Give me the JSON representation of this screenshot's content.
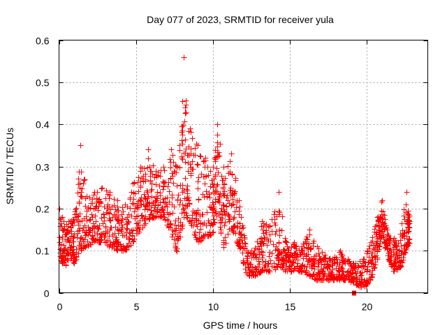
{
  "chart_data": {
    "type": "scatter",
    "title": "Day 077 of 2023, SRMTID for receiver yula",
    "xlabel": "GPS time / hours",
    "ylabel": "SRMTID / TECUs",
    "xlim": [
      0,
      24
    ],
    "ylim": [
      0,
      0.6
    ],
    "xticks": [
      0,
      5,
      10,
      15,
      20
    ],
    "xtick_labels": [
      "0",
      "5",
      "10",
      "15",
      "20"
    ],
    "yticks": [
      0,
      0.1,
      0.2,
      0.3,
      0.4,
      0.5,
      0.6
    ],
    "ytick_labels": [
      "0",
      "0.1",
      "0.2",
      "0.3",
      "0.4",
      "0.5",
      "0.6"
    ],
    "grid": true,
    "marker": "plus",
    "color": "#ff0000",
    "special_point": {
      "x": 19.2,
      "y": 0.0,
      "marker": "square"
    },
    "envelope": [
      {
        "x": 0.0,
        "lo": 0.09,
        "hi": 0.2
      },
      {
        "x": 0.3,
        "lo": 0.06,
        "hi": 0.17
      },
      {
        "x": 0.7,
        "lo": 0.08,
        "hi": 0.17
      },
      {
        "x": 1.0,
        "lo": 0.07,
        "hi": 0.18
      },
      {
        "x": 1.4,
        "lo": 0.1,
        "hi": 0.35
      },
      {
        "x": 1.8,
        "lo": 0.11,
        "hi": 0.23
      },
      {
        "x": 2.3,
        "lo": 0.12,
        "hi": 0.24
      },
      {
        "x": 2.8,
        "lo": 0.12,
        "hi": 0.25
      },
      {
        "x": 3.3,
        "lo": 0.11,
        "hi": 0.24
      },
      {
        "x": 3.8,
        "lo": 0.1,
        "hi": 0.22
      },
      {
        "x": 4.3,
        "lo": 0.1,
        "hi": 0.21
      },
      {
        "x": 4.8,
        "lo": 0.12,
        "hi": 0.26
      },
      {
        "x": 5.3,
        "lo": 0.15,
        "hi": 0.3
      },
      {
        "x": 5.8,
        "lo": 0.17,
        "hi": 0.34
      },
      {
        "x": 6.3,
        "lo": 0.18,
        "hi": 0.29
      },
      {
        "x": 6.8,
        "lo": 0.18,
        "hi": 0.3
      },
      {
        "x": 7.3,
        "lo": 0.14,
        "hi": 0.34
      },
      {
        "x": 7.7,
        "lo": 0.09,
        "hi": 0.3
      },
      {
        "x": 8.1,
        "lo": 0.18,
        "hi": 0.56
      },
      {
        "x": 8.5,
        "lo": 0.17,
        "hi": 0.39
      },
      {
        "x": 9.0,
        "lo": 0.12,
        "hi": 0.35
      },
      {
        "x": 9.5,
        "lo": 0.13,
        "hi": 0.32
      },
      {
        "x": 10.0,
        "lo": 0.14,
        "hi": 0.3
      },
      {
        "x": 10.3,
        "lo": 0.19,
        "hi": 0.4
      },
      {
        "x": 10.7,
        "lo": 0.1,
        "hi": 0.3
      },
      {
        "x": 11.2,
        "lo": 0.15,
        "hi": 0.33
      },
      {
        "x": 11.7,
        "lo": 0.11,
        "hi": 0.22
      },
      {
        "x": 12.2,
        "lo": 0.04,
        "hi": 0.1
      },
      {
        "x": 12.7,
        "lo": 0.04,
        "hi": 0.1
      },
      {
        "x": 13.2,
        "lo": 0.05,
        "hi": 0.17
      },
      {
        "x": 13.7,
        "lo": 0.05,
        "hi": 0.16
      },
      {
        "x": 14.3,
        "lo": 0.06,
        "hi": 0.24
      },
      {
        "x": 14.8,
        "lo": 0.05,
        "hi": 0.12
      },
      {
        "x": 15.3,
        "lo": 0.05,
        "hi": 0.12
      },
      {
        "x": 15.8,
        "lo": 0.05,
        "hi": 0.11
      },
      {
        "x": 16.3,
        "lo": 0.04,
        "hi": 0.15
      },
      {
        "x": 16.8,
        "lo": 0.03,
        "hi": 0.11
      },
      {
        "x": 17.3,
        "lo": 0.03,
        "hi": 0.09
      },
      {
        "x": 17.8,
        "lo": 0.03,
        "hi": 0.08
      },
      {
        "x": 18.3,
        "lo": 0.03,
        "hi": 0.1
      },
      {
        "x": 18.8,
        "lo": 0.03,
        "hi": 0.08
      },
      {
        "x": 19.3,
        "lo": 0.02,
        "hi": 0.07
      },
      {
        "x": 19.8,
        "lo": 0.01,
        "hi": 0.08
      },
      {
        "x": 20.3,
        "lo": 0.03,
        "hi": 0.12
      },
      {
        "x": 20.7,
        "lo": 0.08,
        "hi": 0.18
      },
      {
        "x": 21.0,
        "lo": 0.14,
        "hi": 0.22
      },
      {
        "x": 21.4,
        "lo": 0.08,
        "hi": 0.14
      },
      {
        "x": 21.8,
        "lo": 0.05,
        "hi": 0.13
      },
      {
        "x": 22.2,
        "lo": 0.06,
        "hi": 0.14
      },
      {
        "x": 22.6,
        "lo": 0.1,
        "hi": 0.24
      },
      {
        "x": 22.8,
        "lo": 0.12,
        "hi": 0.18
      }
    ]
  }
}
